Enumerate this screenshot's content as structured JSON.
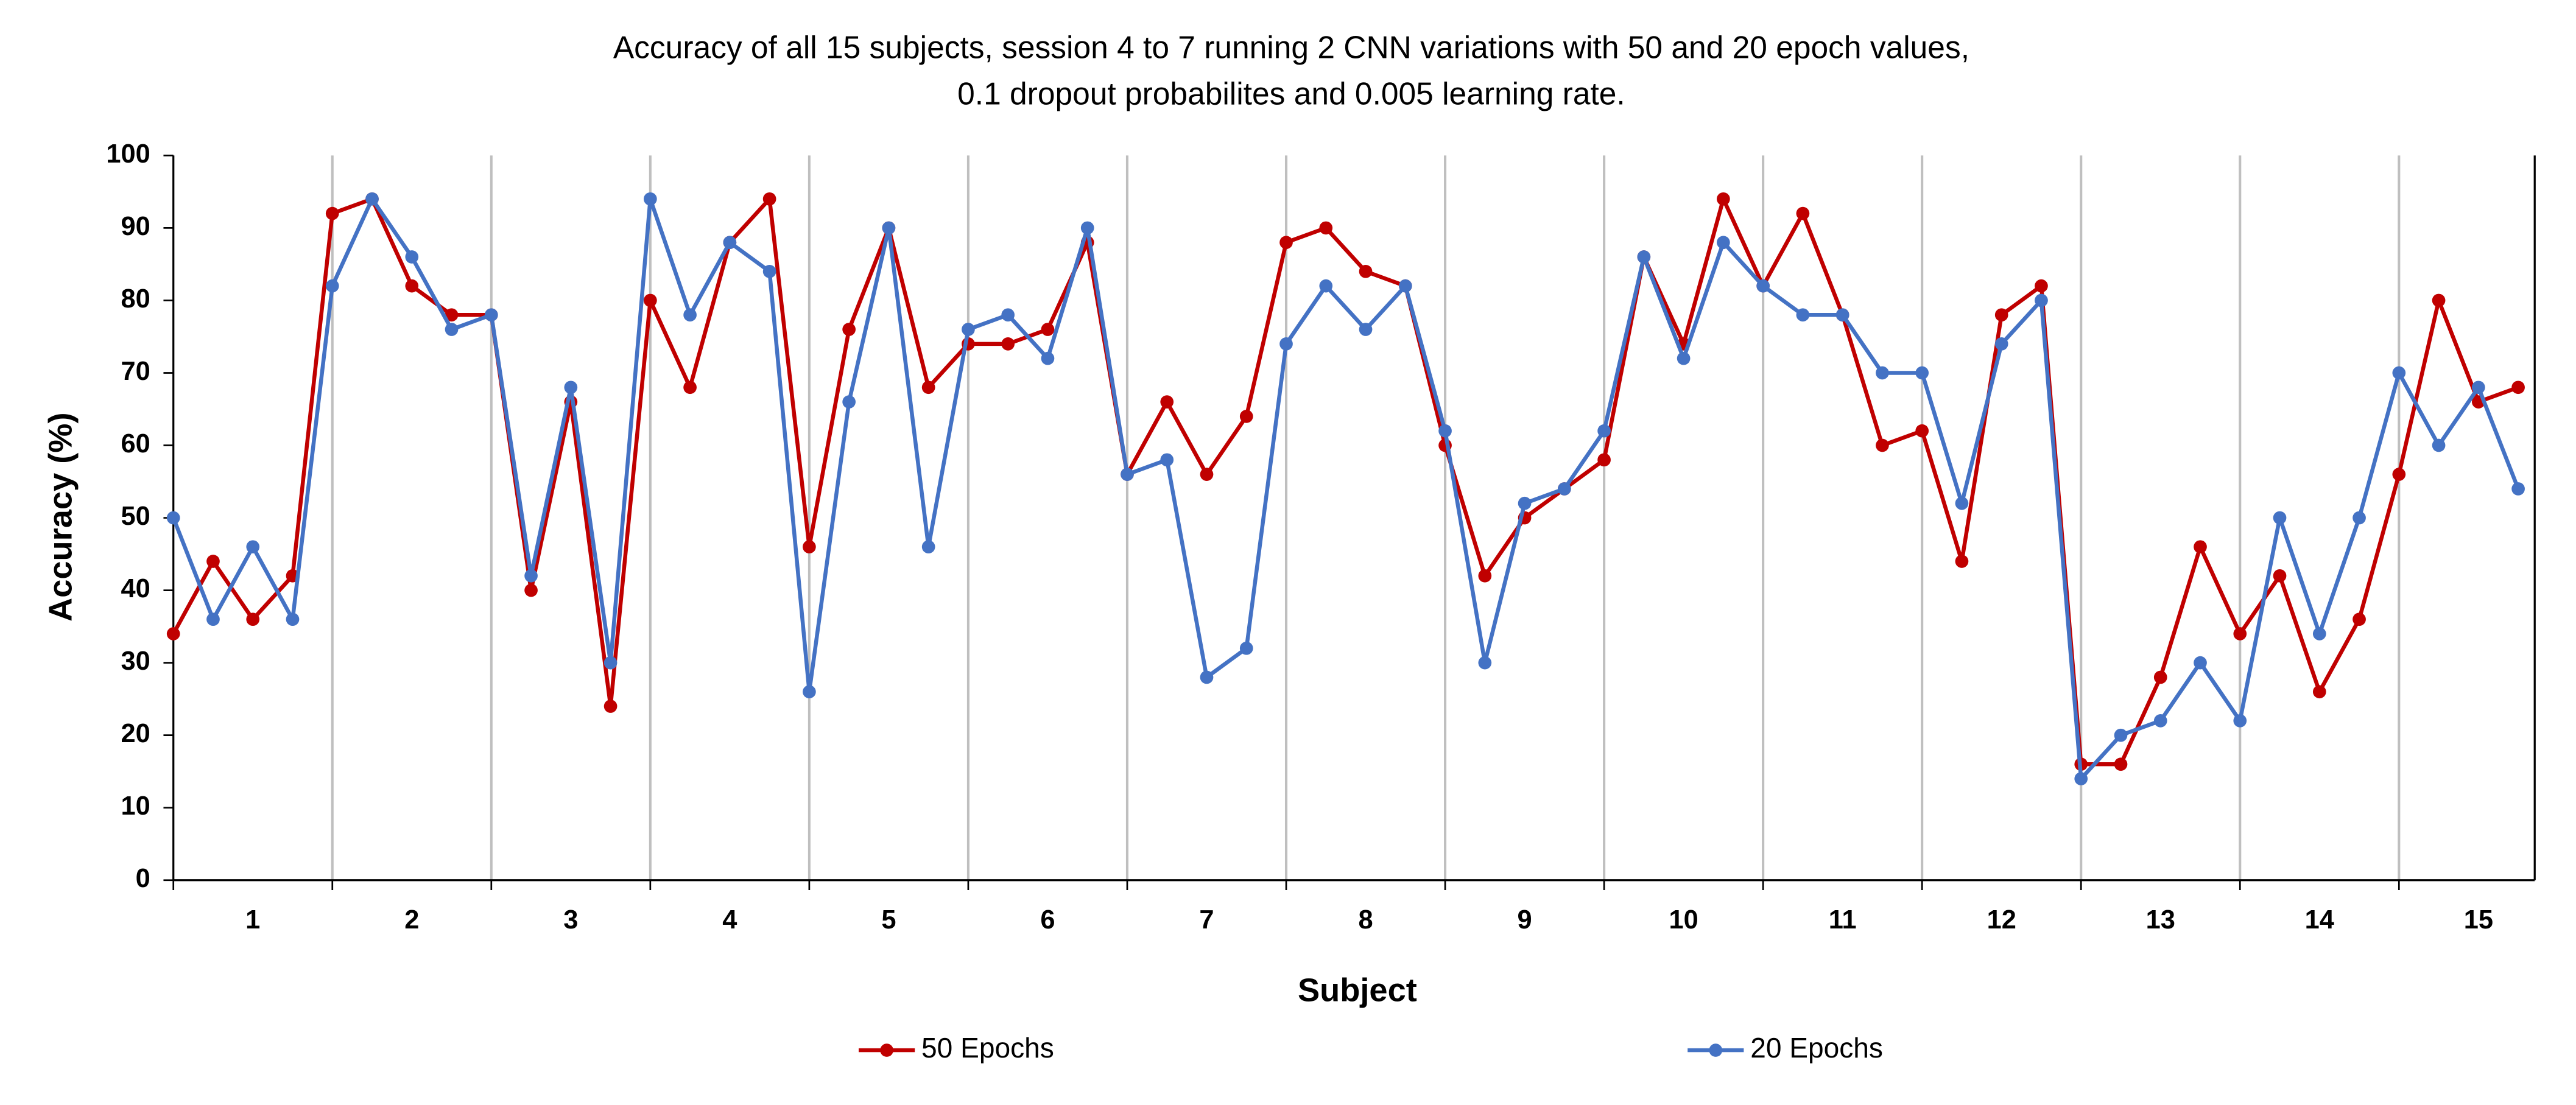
{
  "chart_data": {
    "type": "line",
    "title": [
      "Accuracy of all 15 subjects, session 4 to 7 running 2 CNN variations with 50 and 20 epoch values,",
      "0.1 dropout probabilites and 0.005 learning rate."
    ],
    "x_label": "Subject",
    "y_label": "Accuracy (%)",
    "categories": [
      null,
      null,
      "1",
      null,
      null,
      null,
      "2",
      null,
      null,
      null,
      "3",
      null,
      null,
      null,
      "4",
      null,
      null,
      null,
      "5",
      null,
      null,
      null,
      "6",
      null,
      null,
      null,
      "7",
      null,
      null,
      null,
      "8",
      null,
      null,
      null,
      "9",
      null,
      null,
      null,
      "10",
      null,
      null,
      null,
      "11",
      null,
      null,
      null,
      "12",
      null,
      null,
      null,
      "13",
      null,
      null,
      null,
      "14",
      null,
      null,
      null,
      "15",
      null
    ],
    "ylim": [
      0,
      100
    ],
    "yticks": [
      0,
      10,
      20,
      30,
      40,
      50,
      60,
      70,
      80,
      90,
      100
    ],
    "legend": "bottom",
    "series": [
      {
        "name": "50 Epochs",
        "color": "#c00000",
        "values": [
          34,
          44,
          36,
          42,
          92,
          94,
          82,
          78,
          78,
          40,
          66,
          24,
          80,
          68,
          88,
          94,
          46,
          76,
          90,
          68,
          74,
          74,
          76,
          88,
          56,
          66,
          56,
          64,
          88,
          90,
          84,
          82,
          60,
          42,
          50,
          54,
          58,
          86,
          74,
          94,
          82,
          92,
          78,
          60,
          62,
          44,
          78,
          82,
          16,
          16,
          28,
          46,
          34,
          42,
          26,
          36,
          56,
          80,
          66,
          68
        ]
      },
      {
        "name": "20 Epochs",
        "color": "#4472c4",
        "values": [
          50,
          36,
          46,
          36,
          82,
          94,
          86,
          76,
          78,
          42,
          68,
          30,
          94,
          78,
          88,
          84,
          26,
          66,
          90,
          46,
          76,
          78,
          72,
          90,
          56,
          58,
          28,
          32,
          74,
          82,
          76,
          82,
          62,
          30,
          52,
          54,
          62,
          86,
          72,
          88,
          82,
          78,
          78,
          70,
          70,
          52,
          74,
          80,
          14,
          20,
          22,
          30,
          22,
          50,
          34,
          50,
          70,
          60,
          68,
          54
        ]
      }
    ]
  }
}
